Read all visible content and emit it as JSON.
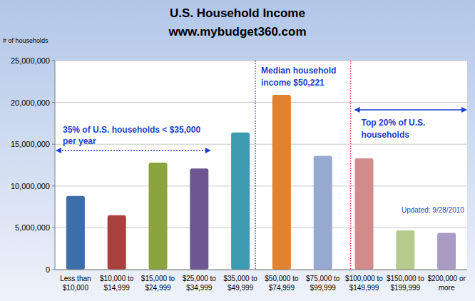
{
  "chart_data": {
    "type": "bar",
    "title": "U.S. Household Income",
    "subtitle": "www.mybudget360.com",
    "y_label": "# of households",
    "categories": [
      "Less than $10,000",
      "$10,000 to $14,999",
      "$15,000 to $24,999",
      "$25,000 to $34,999",
      "$35,000 to $49,999",
      "$50,000 to $74,999",
      "$75,000 to $99,999",
      "$100,000 to $149,999",
      "$150,000 to $199,999",
      "$200,000 or more"
    ],
    "values": [
      8800000,
      6500000,
      12800000,
      12100000,
      16400000,
      20900000,
      13600000,
      13300000,
      4700000,
      4400000
    ],
    "colors": [
      "#3e6ea8",
      "#a8403d",
      "#8ba43f",
      "#6e5692",
      "#3c9ab1",
      "#e0822f",
      "#97a9d0",
      "#d28b8b",
      "#b5cb8d",
      "#a99bc4"
    ],
    "ylim": [
      0,
      25000000
    ],
    "yticks": [
      0,
      {
        "value": 5000000,
        "label": "5,000,000"
      },
      {
        "value": 10000000,
        "label": "10,000,000"
      },
      {
        "value": 15000000,
        "label": "15,000,000"
      },
      {
        "value": 20000000,
        "label": "20,000,000"
      },
      {
        "value": 25000000,
        "label": "25,000,000"
      }
    ],
    "grid": true,
    "annotations": [
      {
        "text": [
          "Median household",
          "income $50,221"
        ]
      },
      {
        "text": [
          "35% of U.S. households < $35,000",
          "per year"
        ]
      },
      {
        "text": [
          "Top 20% of U.S.",
          "households"
        ]
      },
      {
        "text": [
          "Updated:  9/28/2010"
        ]
      }
    ]
  }
}
